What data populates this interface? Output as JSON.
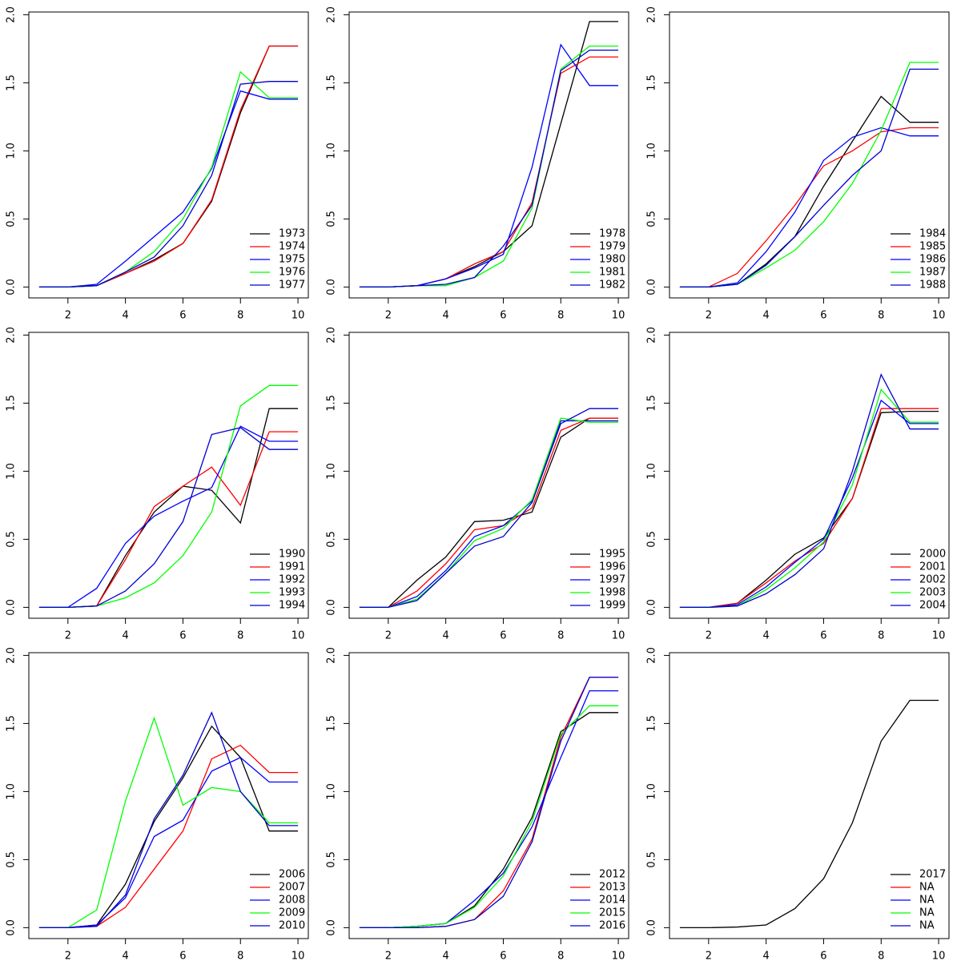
{
  "chart_data": [
    {
      "type": "line",
      "x": [
        1,
        2,
        3,
        4,
        5,
        6,
        7,
        8,
        9,
        10
      ],
      "xlim": [
        0.64,
        10.36
      ],
      "xticks": [
        2,
        4,
        6,
        8,
        10
      ],
      "ylim": [
        -0.08,
        2.02
      ],
      "yticks": [
        {
          "value": 0,
          "label": "0.0"
        },
        {
          "value": 0.5,
          "label": "0.5"
        },
        {
          "value": 1,
          "label": "1.0"
        },
        {
          "value": 1.5,
          "label": "1.5"
        },
        {
          "value": 2,
          "label": "2.0"
        }
      ],
      "legend": "bottomright",
      "series": [
        {
          "name": "1973",
          "color": "#000000",
          "values": [
            0,
            0,
            0.01,
            0.1,
            0.2,
            0.32,
            0.63,
            1.28,
            1.77,
            1.77
          ]
        },
        {
          "name": "1974",
          "color": "#ff0000",
          "values": [
            0,
            0,
            0.01,
            0.1,
            0.19,
            0.32,
            0.64,
            1.3,
            1.77,
            1.77
          ]
        },
        {
          "name": "1975",
          "color": "#0000ff",
          "values": [
            0,
            0,
            0.02,
            0.19,
            0.37,
            0.55,
            0.87,
            1.44,
            1.38,
            1.38
          ]
        },
        {
          "name": "1976",
          "color": "#00ff00",
          "values": [
            0,
            0,
            0.01,
            0.11,
            0.26,
            0.5,
            0.88,
            1.58,
            1.39,
            1.39
          ]
        },
        {
          "name": "1977",
          "color": "#0000cd",
          "values": [
            0,
            0,
            0.01,
            0.11,
            0.22,
            0.45,
            0.82,
            1.49,
            1.51,
            1.51
          ]
        }
      ]
    },
    {
      "type": "line",
      "x": [
        1,
        2,
        3,
        4,
        5,
        6,
        7,
        8,
        9,
        10
      ],
      "xlim": [
        0.64,
        10.36
      ],
      "xticks": [
        2,
        4,
        6,
        8,
        10
      ],
      "ylim": [
        -0.08,
        2.02
      ],
      "yticks": [
        {
          "value": 0,
          "label": "0.0"
        },
        {
          "value": 0.5,
          "label": "0.5"
        },
        {
          "value": 1,
          "label": "1.0"
        },
        {
          "value": 1.5,
          "label": "1.5"
        },
        {
          "value": 2,
          "label": "2.0"
        }
      ],
      "legend": "bottomright",
      "series": [
        {
          "name": "1978",
          "color": "#000000",
          "values": [
            0,
            0,
            0.01,
            0.06,
            0.15,
            0.26,
            0.45,
            1.2,
            1.95,
            1.95
          ]
        },
        {
          "name": "1979",
          "color": "#ff0000",
          "values": [
            0,
            0,
            0.01,
            0.06,
            0.17,
            0.26,
            0.62,
            1.57,
            1.69,
            1.69
          ]
        },
        {
          "name": "1980",
          "color": "#0000ff",
          "values": [
            0,
            0,
            0.01,
            0.06,
            0.14,
            0.24,
            0.88,
            1.78,
            1.48,
            1.48
          ]
        },
        {
          "name": "1981",
          "color": "#00ff00",
          "values": [
            0,
            0,
            0.01,
            0.01,
            0.07,
            0.19,
            0.58,
            1.6,
            1.77,
            1.77
          ]
        },
        {
          "name": "1982",
          "color": "#0000cd",
          "values": [
            0,
            0,
            0.01,
            0.02,
            0.07,
            0.3,
            0.6,
            1.59,
            1.74,
            1.74
          ]
        }
      ]
    },
    {
      "type": "line",
      "x": [
        1,
        2,
        3,
        4,
        5,
        6,
        7,
        8,
        9,
        10
      ],
      "xlim": [
        0.64,
        10.36
      ],
      "xticks": [
        2,
        4,
        6,
        8,
        10
      ],
      "ylim": [
        -0.08,
        2.02
      ],
      "yticks": [
        {
          "value": 0,
          "label": "0.0"
        },
        {
          "value": 0.5,
          "label": "0.5"
        },
        {
          "value": 1,
          "label": "1.0"
        },
        {
          "value": 1.5,
          "label": "1.5"
        },
        {
          "value": 2,
          "label": "2.0"
        }
      ],
      "legend": "bottomright",
      "series": [
        {
          "name": "1984",
          "color": "#000000",
          "values": [
            0,
            0,
            0.02,
            0.17,
            0.37,
            0.74,
            1.07,
            1.4,
            1.21,
            1.21
          ]
        },
        {
          "name": "1985",
          "color": "#ff0000",
          "values": [
            0,
            0,
            0.1,
            0.34,
            0.6,
            0.89,
            1.0,
            1.14,
            1.17,
            1.17
          ]
        },
        {
          "name": "1986",
          "color": "#0000ff",
          "values": [
            0,
            0,
            0.03,
            0.26,
            0.55,
            0.93,
            1.1,
            1.17,
            1.11,
            1.11
          ]
        },
        {
          "name": "1987",
          "color": "#00ff00",
          "values": [
            0,
            0,
            0.02,
            0.14,
            0.27,
            0.48,
            0.76,
            1.15,
            1.65,
            1.65
          ]
        },
        {
          "name": "1988",
          "color": "#0000cd",
          "values": [
            0,
            0,
            0.02,
            0.16,
            0.37,
            0.6,
            0.82,
            1.0,
            1.6,
            1.6
          ]
        }
      ]
    },
    {
      "type": "line",
      "x": [
        1,
        2,
        3,
        4,
        5,
        6,
        7,
        8,
        9,
        10
      ],
      "xlim": [
        0.64,
        10.36
      ],
      "xticks": [
        2,
        4,
        6,
        8,
        10
      ],
      "ylim": [
        -0.08,
        2.02
      ],
      "yticks": [
        {
          "value": 0,
          "label": "0.0"
        },
        {
          "value": 0.5,
          "label": "0.5"
        },
        {
          "value": 1,
          "label": "1.0"
        },
        {
          "value": 1.5,
          "label": "1.5"
        },
        {
          "value": 2,
          "label": "2.0"
        }
      ],
      "legend": "bottomright",
      "series": [
        {
          "name": "1990",
          "color": "#000000",
          "values": [
            0,
            0,
            0.01,
            0.38,
            0.7,
            0.89,
            0.86,
            0.62,
            1.46,
            1.46
          ]
        },
        {
          "name": "1991",
          "color": "#ff0000",
          "values": [
            0,
            0,
            0.01,
            0.35,
            0.74,
            0.89,
            1.03,
            0.75,
            1.29,
            1.29
          ]
        },
        {
          "name": "1992",
          "color": "#0000ff",
          "values": [
            0,
            0,
            0.14,
            0.47,
            0.67,
            0.78,
            0.88,
            1.33,
            1.22,
            1.22
          ]
        },
        {
          "name": "1993",
          "color": "#00ff00",
          "values": [
            0,
            0,
            0.01,
            0.07,
            0.18,
            0.38,
            0.7,
            1.48,
            1.63,
            1.63
          ]
        },
        {
          "name": "1994",
          "color": "#0000cd",
          "values": [
            0,
            0,
            0.01,
            0.12,
            0.32,
            0.63,
            1.27,
            1.32,
            1.16,
            1.16
          ]
        }
      ]
    },
    {
      "type": "line",
      "x": [
        1,
        2,
        3,
        4,
        5,
        6,
        7,
        8,
        9,
        10
      ],
      "xlim": [
        0.64,
        10.36
      ],
      "xticks": [
        2,
        4,
        6,
        8,
        10
      ],
      "ylim": [
        -0.08,
        2.02
      ],
      "yticks": [
        {
          "value": 0,
          "label": "0.0"
        },
        {
          "value": 0.5,
          "label": "0.5"
        },
        {
          "value": 1,
          "label": "1.0"
        },
        {
          "value": 1.5,
          "label": "1.5"
        },
        {
          "value": 2,
          "label": "2.0"
        }
      ],
      "legend": "bottomright",
      "series": [
        {
          "name": "1995",
          "color": "#000000",
          "values": [
            0,
            0,
            0.2,
            0.37,
            0.63,
            0.64,
            0.7,
            1.25,
            1.39,
            1.39
          ]
        },
        {
          "name": "1996",
          "color": "#ff0000",
          "values": [
            0,
            0,
            0.12,
            0.32,
            0.57,
            0.6,
            0.73,
            1.3,
            1.39,
            1.39
          ]
        },
        {
          "name": "1997",
          "color": "#0000ff",
          "values": [
            0,
            0,
            0.08,
            0.27,
            0.52,
            0.6,
            0.78,
            1.37,
            1.37,
            1.37
          ]
        },
        {
          "name": "1998",
          "color": "#00ff00",
          "values": [
            0,
            0,
            0.06,
            0.25,
            0.49,
            0.58,
            0.79,
            1.39,
            1.36,
            1.36
          ]
        },
        {
          "name": "1999",
          "color": "#0000cd",
          "values": [
            0,
            0,
            0.05,
            0.25,
            0.45,
            0.52,
            0.77,
            1.35,
            1.46,
            1.46
          ]
        }
      ]
    },
    {
      "type": "line",
      "x": [
        1,
        2,
        3,
        4,
        5,
        6,
        7,
        8,
        9,
        10
      ],
      "xlim": [
        0.64,
        10.36
      ],
      "xticks": [
        2,
        4,
        6,
        8,
        10
      ],
      "ylim": [
        -0.08,
        2.02
      ],
      "yticks": [
        {
          "value": 0,
          "label": "0.0"
        },
        {
          "value": 0.5,
          "label": "0.5"
        },
        {
          "value": 1,
          "label": "1.0"
        },
        {
          "value": 1.5,
          "label": "1.5"
        },
        {
          "value": 2,
          "label": "2.0"
        }
      ],
      "legend": "bottomright",
      "series": [
        {
          "name": "2000",
          "color": "#000000",
          "values": [
            0,
            0,
            0.03,
            0.2,
            0.39,
            0.51,
            0.8,
            1.43,
            1.44,
            1.44
          ]
        },
        {
          "name": "2001",
          "color": "#ff0000",
          "values": [
            0,
            0,
            0.03,
            0.18,
            0.34,
            0.47,
            0.8,
            1.46,
            1.46,
            1.46
          ]
        },
        {
          "name": "2002",
          "color": "#0000ff",
          "values": [
            0,
            0,
            0.02,
            0.15,
            0.33,
            0.5,
            0.95,
            1.52,
            1.35,
            1.35
          ]
        },
        {
          "name": "2003",
          "color": "#00ff00",
          "values": [
            0,
            0,
            0.01,
            0.13,
            0.29,
            0.48,
            0.9,
            1.6,
            1.36,
            1.36
          ]
        },
        {
          "name": "2004",
          "color": "#0000cd",
          "values": [
            0,
            0,
            0.01,
            0.1,
            0.24,
            0.43,
            1.0,
            1.71,
            1.31,
            1.31
          ]
        }
      ]
    },
    {
      "type": "line",
      "x": [
        1,
        2,
        3,
        4,
        5,
        6,
        7,
        8,
        9,
        10
      ],
      "xlim": [
        0.64,
        10.36
      ],
      "xticks": [
        2,
        4,
        6,
        8,
        10
      ],
      "ylim": [
        -0.08,
        2.02
      ],
      "yticks": [
        {
          "value": 0,
          "label": "0.0"
        },
        {
          "value": 0.5,
          "label": "0.5"
        },
        {
          "value": 1,
          "label": "1.0"
        },
        {
          "value": 1.5,
          "label": "1.5"
        },
        {
          "value": 2,
          "label": "2.0"
        }
      ],
      "legend": "bottomright",
      "series": [
        {
          "name": "2006",
          "color": "#000000",
          "values": [
            0,
            0,
            0.02,
            0.32,
            0.78,
            1.1,
            1.48,
            1.25,
            0.71,
            0.71
          ]
        },
        {
          "name": "2007",
          "color": "#ff0000",
          "values": [
            0,
            0,
            0.01,
            0.15,
            0.43,
            0.71,
            1.24,
            1.34,
            1.14,
            1.14
          ]
        },
        {
          "name": "2008",
          "color": "#0000ff",
          "values": [
            0,
            0,
            0.02,
            0.22,
            0.67,
            0.79,
            1.15,
            1.25,
            1.07,
            1.07
          ]
        },
        {
          "name": "2009",
          "color": "#00ff00",
          "values": [
            0,
            0,
            0.13,
            0.93,
            1.54,
            0.9,
            1.03,
            1.0,
            0.77,
            0.77
          ]
        },
        {
          "name": "2010",
          "color": "#0000cd",
          "values": [
            0,
            0,
            0.01,
            0.24,
            0.8,
            1.12,
            1.58,
            1.0,
            0.75,
            0.75
          ]
        }
      ]
    },
    {
      "type": "line",
      "x": [
        1,
        2,
        3,
        4,
        5,
        6,
        7,
        8,
        9,
        10
      ],
      "xlim": [
        0.64,
        10.36
      ],
      "xticks": [
        2,
        4,
        6,
        8,
        10
      ],
      "ylim": [
        -0.08,
        2.02
      ],
      "yticks": [
        {
          "value": 0,
          "label": "0.0"
        },
        {
          "value": 0.5,
          "label": "0.5"
        },
        {
          "value": 1,
          "label": "1.0"
        },
        {
          "value": 1.5,
          "label": "1.5"
        },
        {
          "value": 2,
          "label": "2.0"
        }
      ],
      "legend": "bottomright",
      "series": [
        {
          "name": "2012",
          "color": "#000000",
          "values": [
            0,
            0,
            0.01,
            0.03,
            0.16,
            0.43,
            0.81,
            1.44,
            1.58,
            1.58
          ]
        },
        {
          "name": "2013",
          "color": "#ff0000",
          "values": [
            0,
            0,
            0,
            0.01,
            0.06,
            0.27,
            0.65,
            1.4,
            1.84,
            1.84
          ]
        },
        {
          "name": "2014",
          "color": "#0000ff",
          "values": [
            0,
            0,
            0.01,
            0.03,
            0.2,
            0.4,
            0.74,
            1.25,
            1.74,
            1.74
          ]
        },
        {
          "name": "2015",
          "color": "#00ff00",
          "values": [
            0,
            0,
            0.01,
            0.03,
            0.15,
            0.38,
            0.78,
            1.42,
            1.63,
            1.63
          ]
        },
        {
          "name": "2016",
          "color": "#0000cd",
          "values": [
            0,
            0,
            0,
            0.01,
            0.06,
            0.23,
            0.63,
            1.37,
            1.84,
            1.84
          ]
        }
      ]
    },
    {
      "type": "line",
      "x": [
        1,
        2,
        3,
        4,
        5,
        6,
        7,
        8,
        9,
        10
      ],
      "xlim": [
        0.64,
        10.36
      ],
      "xticks": [
        2,
        4,
        6,
        8,
        10
      ],
      "ylim": [
        -0.08,
        2.02
      ],
      "yticks": [
        {
          "value": 0,
          "label": "0.0"
        },
        {
          "value": 0.5,
          "label": "0.5"
        },
        {
          "value": 1,
          "label": "1.0"
        },
        {
          "value": 1.5,
          "label": "1.5"
        },
        {
          "value": 2,
          "label": "2.0"
        }
      ],
      "legend": "bottomright",
      "series": [
        {
          "name": "2017",
          "color": "#000000",
          "values": [
            0,
            0,
            0.005,
            0.02,
            0.14,
            0.36,
            0.77,
            1.37,
            1.67,
            1.67
          ]
        },
        {
          "name": "NA",
          "color": "#ff0000",
          "values": [
            null,
            null,
            null,
            null,
            null,
            null,
            null,
            null,
            null,
            null
          ]
        },
        {
          "name": "NA",
          "color": "#0000ff",
          "values": [
            null,
            null,
            null,
            null,
            null,
            null,
            null,
            null,
            null,
            null
          ]
        },
        {
          "name": "NA",
          "color": "#00ff00",
          "values": [
            null,
            null,
            null,
            null,
            null,
            null,
            null,
            null,
            null,
            null
          ]
        },
        {
          "name": "NA",
          "color": "#0000cd",
          "values": [
            null,
            null,
            null,
            null,
            null,
            null,
            null,
            null,
            null,
            null
          ]
        }
      ]
    }
  ]
}
